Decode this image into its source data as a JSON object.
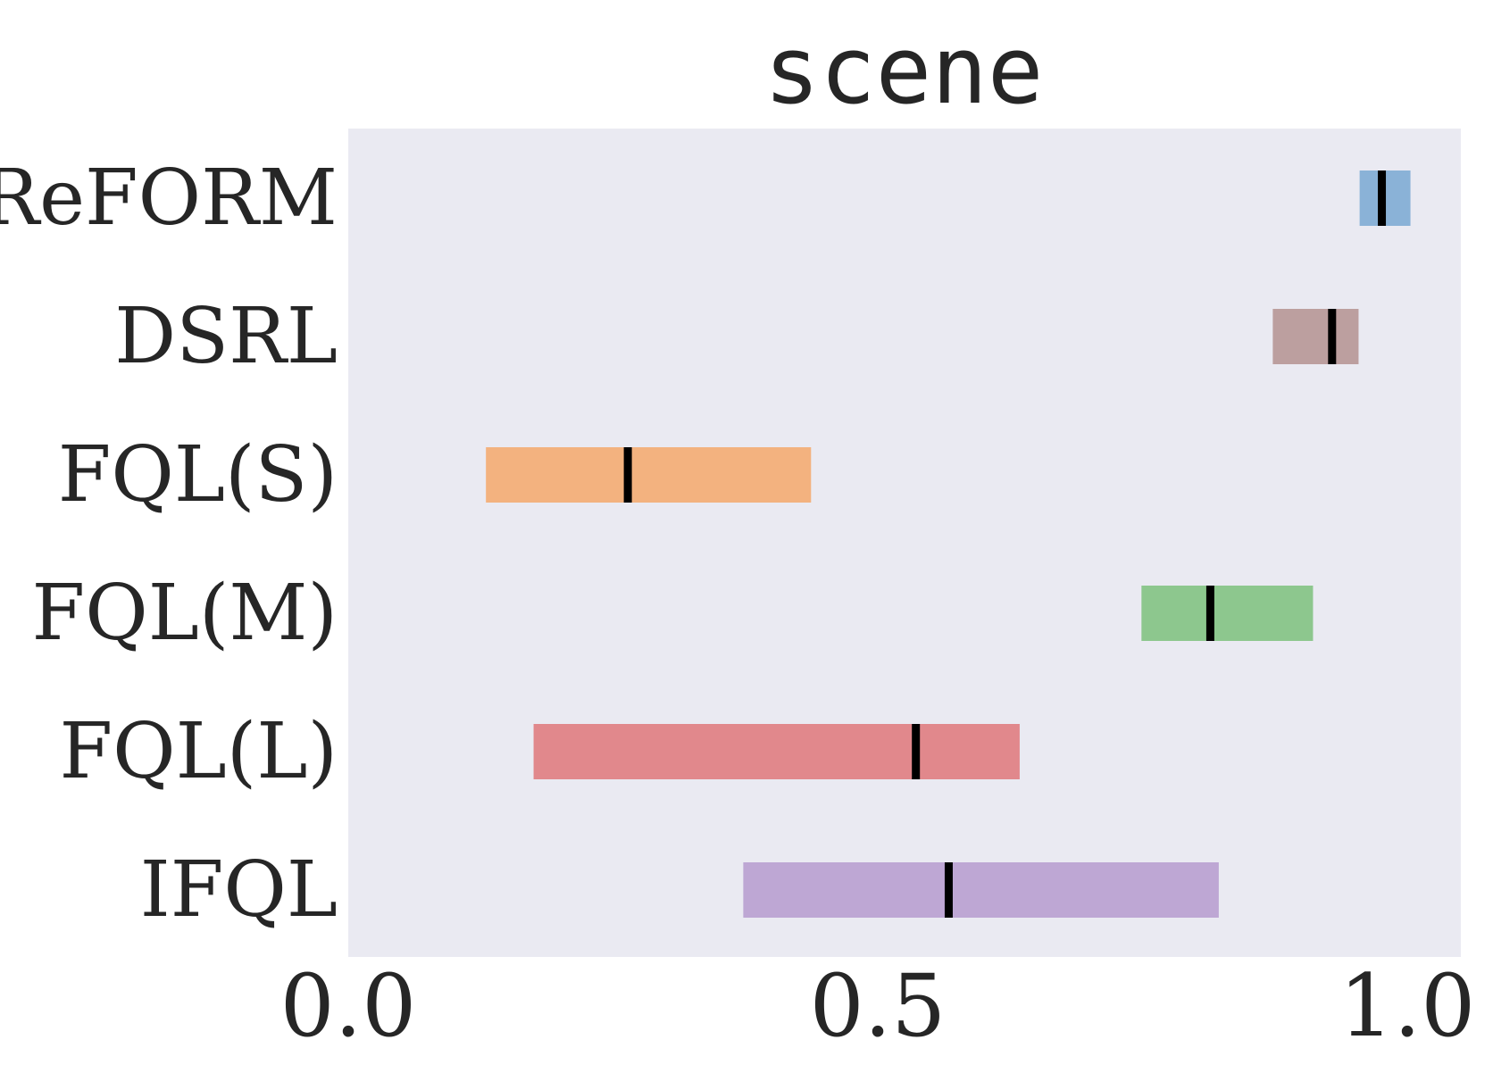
{
  "chart_data": {
    "type": "bar",
    "subtype": "horizontal-range",
    "title": "scene",
    "xlabel": "",
    "ylabel": "",
    "xlim": [
      0.0,
      1.05
    ],
    "x_ticks": [
      0.0,
      0.5,
      1.0
    ],
    "x_tick_labels": [
      "0.0",
      "0.5",
      "1.0"
    ],
    "grid": false,
    "background": "#eaeaf2",
    "categories": [
      "ReFORM",
      "DSRL",
      "FQL(S)",
      "FQL(M)",
      "FQL(L)",
      "IFQL"
    ],
    "series": [
      {
        "category": "ReFORM",
        "low": 0.955,
        "high": 1.003,
        "median": 0.976,
        "color": "#8ab2d7"
      },
      {
        "category": "DSRL",
        "low": 0.873,
        "high": 0.954,
        "median": 0.929,
        "color": "#bc9f9f"
      },
      {
        "category": "FQL(S)",
        "low": 0.13,
        "high": 0.437,
        "median": 0.264,
        "color": "#f3b27f"
      },
      {
        "category": "FQL(M)",
        "low": 0.749,
        "high": 0.911,
        "median": 0.814,
        "color": "#8dc78e"
      },
      {
        "category": "FQL(L)",
        "low": 0.175,
        "high": 0.634,
        "median": 0.536,
        "color": "#e1888c"
      },
      {
        "category": "IFQL",
        "low": 0.373,
        "high": 0.822,
        "median": 0.567,
        "color": "#bea7d4"
      }
    ],
    "median_marker_color": "#000000",
    "text_color": "#262626"
  }
}
